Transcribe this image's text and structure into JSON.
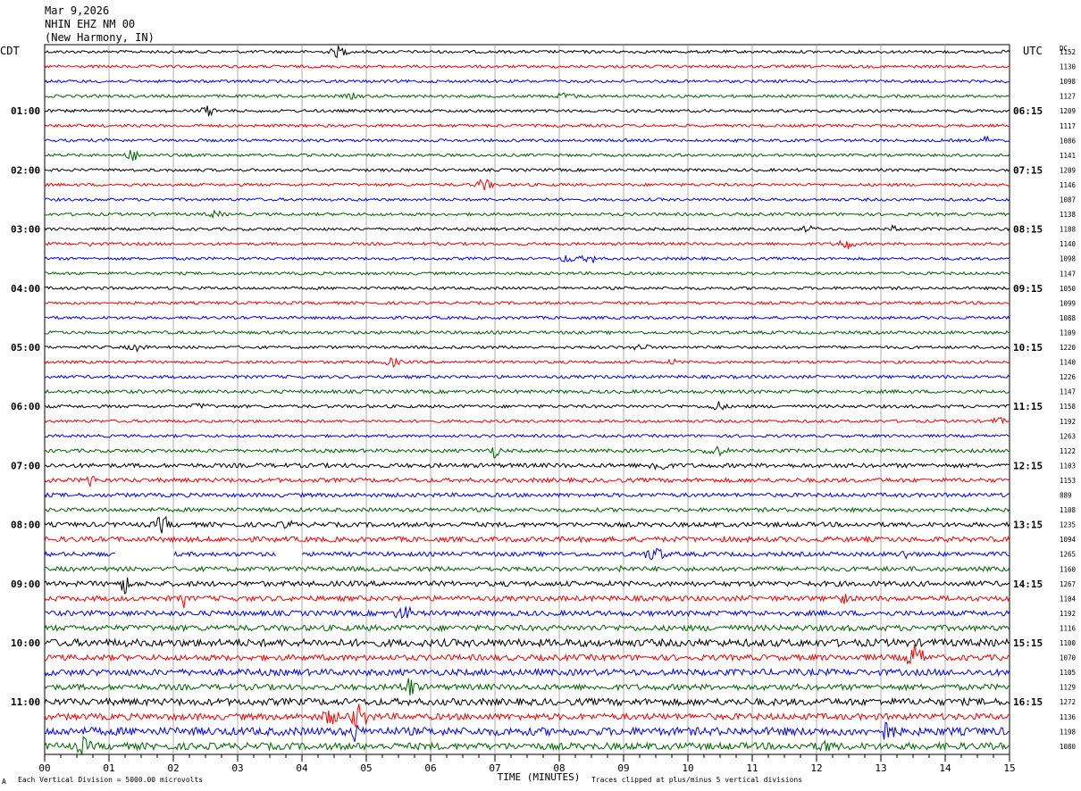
{
  "header": {
    "date": "Mar 9,2026",
    "station": "NHIN EHZ NM 00",
    "location": "(New Harmony, IN)"
  },
  "axis": {
    "left_label": "CDT",
    "right_label": "UTC",
    "dc_label": "DC",
    "xlabel": "TIME (MINUTES)",
    "x_ticks": [
      "00",
      "01",
      "02",
      "03",
      "04",
      "05",
      "06",
      "07",
      "08",
      "09",
      "10",
      "11",
      "12",
      "13",
      "14",
      "15"
    ]
  },
  "notes": {
    "left": "Each Vertical Division = 5000.00 microvolts",
    "right": "Traces clipped at plus/minus 5 vertical divisions",
    "corner": "A"
  },
  "chart_data": {
    "type": "line",
    "title": "",
    "x_range_minutes": [
      0,
      15
    ],
    "rows_per_hour": 4,
    "row_minutes": 15,
    "colors": [
      "#000000",
      "#ff0000",
      "#0000ff",
      "#006400"
    ],
    "hour_labels_local": [
      "",
      "01:00",
      "02:00",
      "03:00",
      "04:00",
      "05:00",
      "06:00",
      "07:00",
      "08:00",
      "09:00",
      "10:00",
      "11:00"
    ],
    "hour_labels_utc": [
      "",
      "06:15",
      "07:15",
      "08:15",
      "09:15",
      "10:15",
      "11:15",
      "12:15",
      "13:15",
      "14:15",
      "15:15",
      "16:15"
    ],
    "dc_offsets": [
      "1152",
      "1130",
      "1098",
      "1127",
      "1209",
      "1117",
      "1086",
      "1141",
      "1209",
      "1146",
      "1087",
      "1138",
      "1188",
      "1140",
      "1098",
      "1147",
      "1050",
      "1099",
      "1088",
      "1109",
      "1220",
      "1140",
      "1226",
      "1147",
      "1158",
      "1192",
      "1263",
      "1122",
      "1103",
      "1153",
      "889",
      "1108",
      "1235",
      "1094",
      "1265",
      "1160",
      "1267",
      "1104",
      "1192",
      "1116",
      "1100",
      "1070",
      "1105",
      "1129",
      "1272",
      "1136",
      "1198",
      "1080"
    ],
    "trace_amplitude": [
      1,
      1,
      1,
      1,
      1,
      1,
      1,
      1,
      1,
      1,
      1,
      1,
      1,
      1,
      1,
      1,
      1,
      1,
      1,
      1.1,
      1,
      1,
      1.1,
      1.2,
      1.1,
      1,
      1,
      1.2,
      1.5,
      1.5,
      1.4,
      1.4,
      1.6,
      1.8,
      1.5,
      1.6,
      1.8,
      1.8,
      1.8,
      2.0,
      2.6,
      2.0,
      2.2,
      2.0,
      2.4,
      2.2,
      2.8,
      2.4
    ],
    "gaps": [
      {
        "row": 34,
        "start_min": 1.1,
        "end_min": 2.0
      },
      {
        "row": 34,
        "start_min": 3.6,
        "end_min": 4.0
      }
    ]
  }
}
